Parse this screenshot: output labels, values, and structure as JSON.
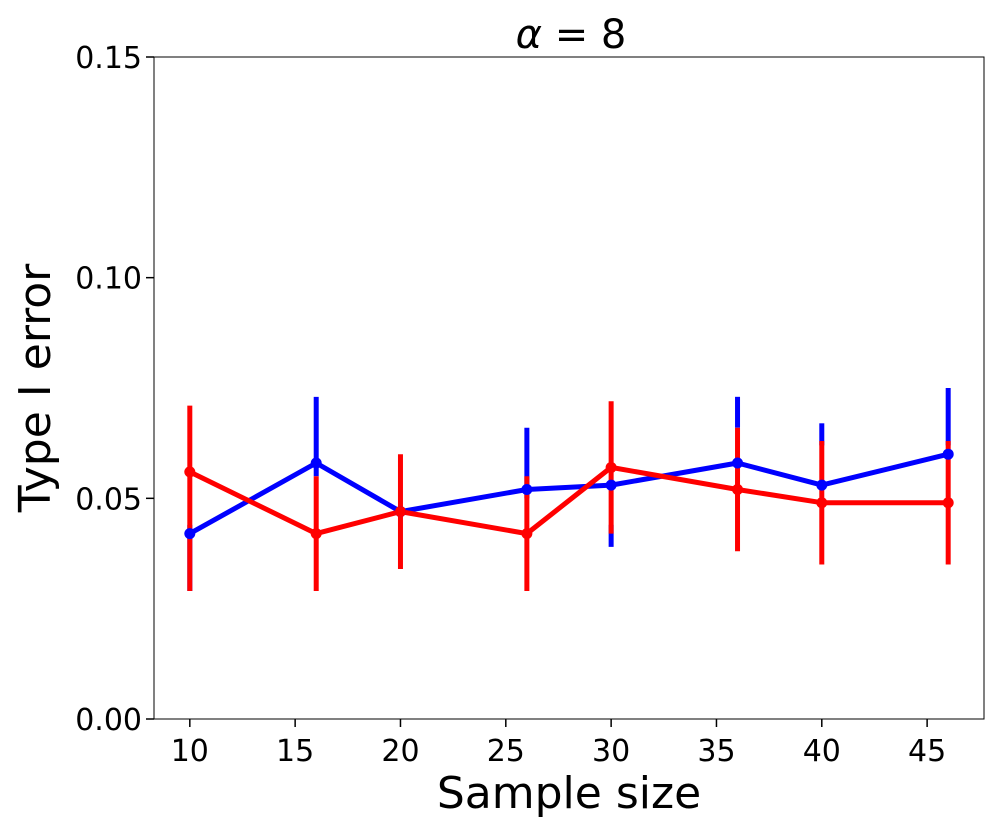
{
  "chart_data": {
    "type": "line",
    "title": "α = 8",
    "title_alpha": "α",
    "title_rest": " = 8",
    "xlabel": "Sample size",
    "ylabel": "Type I error",
    "xlim": [
      8.3,
      47.7
    ],
    "ylim": [
      0,
      0.15
    ],
    "xticks": [
      10,
      15,
      20,
      25,
      30,
      35,
      40,
      45
    ],
    "yticks": [
      0.0,
      0.05,
      0.1,
      0.15
    ],
    "ytick_labels": [
      "0.00",
      "0.05",
      "0.10",
      "0.15"
    ],
    "grid": false,
    "x": [
      10,
      16,
      20,
      26,
      30,
      36,
      40,
      46
    ],
    "series": [
      {
        "color": "#0000ff",
        "values": [
          0.042,
          0.058,
          0.047,
          0.052,
          0.053,
          0.058,
          0.053,
          0.06
        ],
        "lower": [
          0.029,
          0.055,
          0.047,
          0.05,
          0.039,
          0.066,
          0.062,
          0.062
        ],
        "upper": [
          0.044,
          0.073,
          0.047,
          0.066,
          0.044,
          0.073,
          0.067,
          0.075
        ]
      },
      {
        "color": "#ff0000",
        "values": [
          0.056,
          0.042,
          0.047,
          0.042,
          0.057,
          0.052,
          0.049,
          0.049
        ],
        "lower": [
          0.029,
          0.029,
          0.034,
          0.029,
          0.042,
          0.038,
          0.035,
          0.035
        ],
        "upper": [
          0.071,
          0.055,
          0.06,
          0.055,
          0.072,
          0.066,
          0.063,
          0.063
        ]
      }
    ]
  }
}
